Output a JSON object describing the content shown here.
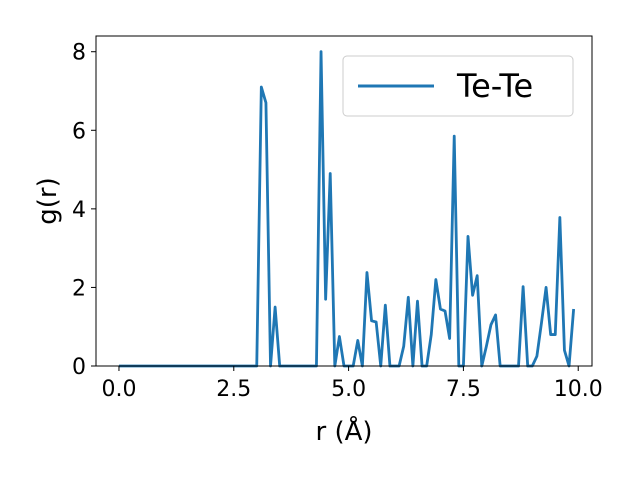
{
  "chart_data": {
    "type": "line",
    "title": "",
    "xlabel": "r (Å)",
    "ylabel": "g(r)",
    "xlim": [
      -0.5,
      10.3
    ],
    "ylim": [
      0,
      8.4
    ],
    "xticks": [
      0.0,
      2.5,
      5.0,
      7.5,
      10.0
    ],
    "xtick_labels": [
      "0.0",
      "2.5",
      "5.0",
      "7.5",
      "10.0"
    ],
    "yticks": [
      0,
      2,
      4,
      6,
      8
    ],
    "ytick_labels": [
      "0",
      "2",
      "4",
      "6",
      "8"
    ],
    "grid": false,
    "legend_position": "top-right",
    "series": [
      {
        "name": "Te-Te",
        "color": "#1f77b4",
        "x": [
          0.0,
          0.1,
          0.2,
          0.3,
          0.4,
          0.5,
          0.6,
          0.7,
          0.8,
          0.9,
          1.0,
          1.1,
          1.2,
          1.3,
          1.4,
          1.5,
          1.6,
          1.7,
          1.8,
          1.9,
          2.0,
          2.1,
          2.2,
          2.3,
          2.4,
          2.5,
          2.6,
          2.7,
          2.8,
          2.9,
          3.0,
          3.1,
          3.2,
          3.3,
          3.4,
          3.5,
          3.6,
          3.7,
          3.8,
          3.9,
          4.0,
          4.1,
          4.2,
          4.3,
          4.4,
          4.5,
          4.6,
          4.7,
          4.8,
          4.9,
          5.0,
          5.1,
          5.2,
          5.3,
          5.4,
          5.5,
          5.6,
          5.7,
          5.8,
          5.9,
          6.0,
          6.1,
          6.2,
          6.3,
          6.4,
          6.5,
          6.6,
          6.7,
          6.8,
          6.9,
          7.0,
          7.1,
          7.2,
          7.3,
          7.4,
          7.5,
          7.6,
          7.7,
          7.8,
          7.9,
          8.0,
          8.1,
          8.2,
          8.3,
          8.4,
          8.5,
          8.6,
          8.7,
          8.8,
          8.9,
          9.0,
          9.1,
          9.2,
          9.3,
          9.4,
          9.5,
          9.6,
          9.7,
          9.8,
          9.9
        ],
        "values": [
          0,
          0,
          0,
          0,
          0,
          0,
          0,
          0,
          0,
          0,
          0,
          0,
          0,
          0,
          0,
          0,
          0,
          0,
          0,
          0,
          0,
          0,
          0,
          0,
          0,
          0,
          0,
          0,
          0,
          0,
          0,
          7.1,
          6.7,
          0,
          1.5,
          0,
          0,
          0,
          0,
          0,
          0,
          0,
          0,
          0,
          8.0,
          1.7,
          4.9,
          0,
          0.75,
          0,
          0,
          0,
          0.65,
          0,
          2.38,
          1.15,
          1.12,
          0,
          1.55,
          0,
          0,
          0,
          0.5,
          1.75,
          0,
          1.65,
          0,
          0,
          0.8,
          2.2,
          1.45,
          1.4,
          0.7,
          5.85,
          0,
          0,
          3.3,
          1.8,
          2.3,
          0,
          0.5,
          1.05,
          1.3,
          0,
          0,
          0,
          0,
          0,
          2.02,
          0,
          0,
          0.25,
          1.1,
          2.0,
          0.8,
          0.8,
          3.78,
          0.4,
          0,
          1.45
        ]
      }
    ]
  }
}
